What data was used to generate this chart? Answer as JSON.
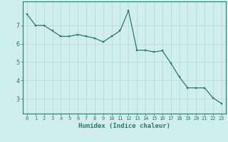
{
  "x": [
    0,
    1,
    2,
    3,
    4,
    5,
    6,
    7,
    8,
    9,
    10,
    11,
    12,
    13,
    14,
    15,
    16,
    17,
    18,
    19,
    20,
    21,
    22,
    23
  ],
  "y": [
    7.6,
    7.0,
    7.0,
    6.7,
    6.4,
    6.4,
    6.5,
    6.4,
    6.3,
    6.1,
    6.4,
    6.7,
    7.8,
    5.65,
    5.65,
    5.55,
    5.62,
    4.95,
    4.2,
    3.6,
    3.6,
    3.6,
    3.05,
    2.75
  ],
  "line_color": "#2a7a6a",
  "marker_color": "#2a7a6a",
  "bg_color": "#d0eeea",
  "grid_color": "#b8ddd8",
  "axis_color": "#2a7a6a",
  "xlabel": "Humidex (Indice chaleur)",
  "xlim": [
    -0.5,
    23.5
  ],
  "ylim": [
    2.2,
    8.3
  ],
  "yticks": [
    3,
    4,
    5,
    6,
    7
  ],
  "xticks": [
    0,
    1,
    2,
    3,
    4,
    5,
    6,
    7,
    8,
    9,
    10,
    11,
    12,
    13,
    14,
    15,
    16,
    17,
    18,
    19,
    20,
    21,
    22,
    23
  ],
  "xtick_labels": [
    "0",
    "1",
    "2",
    "3",
    "4",
    "5",
    "6",
    "7",
    "8",
    "9",
    "10",
    "11",
    "12",
    "13",
    "14",
    "15",
    "16",
    "17",
    "18",
    "19",
    "20",
    "21",
    "22",
    "23"
  ]
}
